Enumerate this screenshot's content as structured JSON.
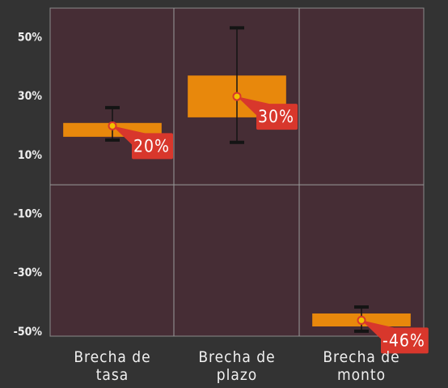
{
  "chart_data": {
    "type": "floating_bar",
    "categories": [
      "Brecha de tasa",
      "Brecha de plazo",
      "Brecha de monto"
    ],
    "low": [
      16.3,
      22.9,
      -48.1
    ],
    "high": [
      21,
      37.1,
      -43.7
    ],
    "whisker_low": [
      15.2,
      14.4,
      -49.7
    ],
    "whisker_high": [
      26.2,
      53.3,
      -41.5
    ],
    "values": [
      20,
      30,
      -46
    ],
    "value_labels": [
      "20%",
      "30%",
      "-46%"
    ],
    "ylim": [
      -51.4,
      60
    ],
    "yticks": [
      {
        "value": 50,
        "label": "50%"
      },
      {
        "value": 30,
        "label": "30%"
      },
      {
        "value": 10,
        "label": "10%"
      },
      {
        "value": -10,
        "label": "-10%"
      },
      {
        "value": -30,
        "label": "-30%"
      },
      {
        "value": -50,
        "label": "-50%"
      }
    ],
    "color": "#e8880c",
    "whisker_color": "#141414",
    "marker_color": "#f2c200",
    "label_color": "#d8372c"
  }
}
